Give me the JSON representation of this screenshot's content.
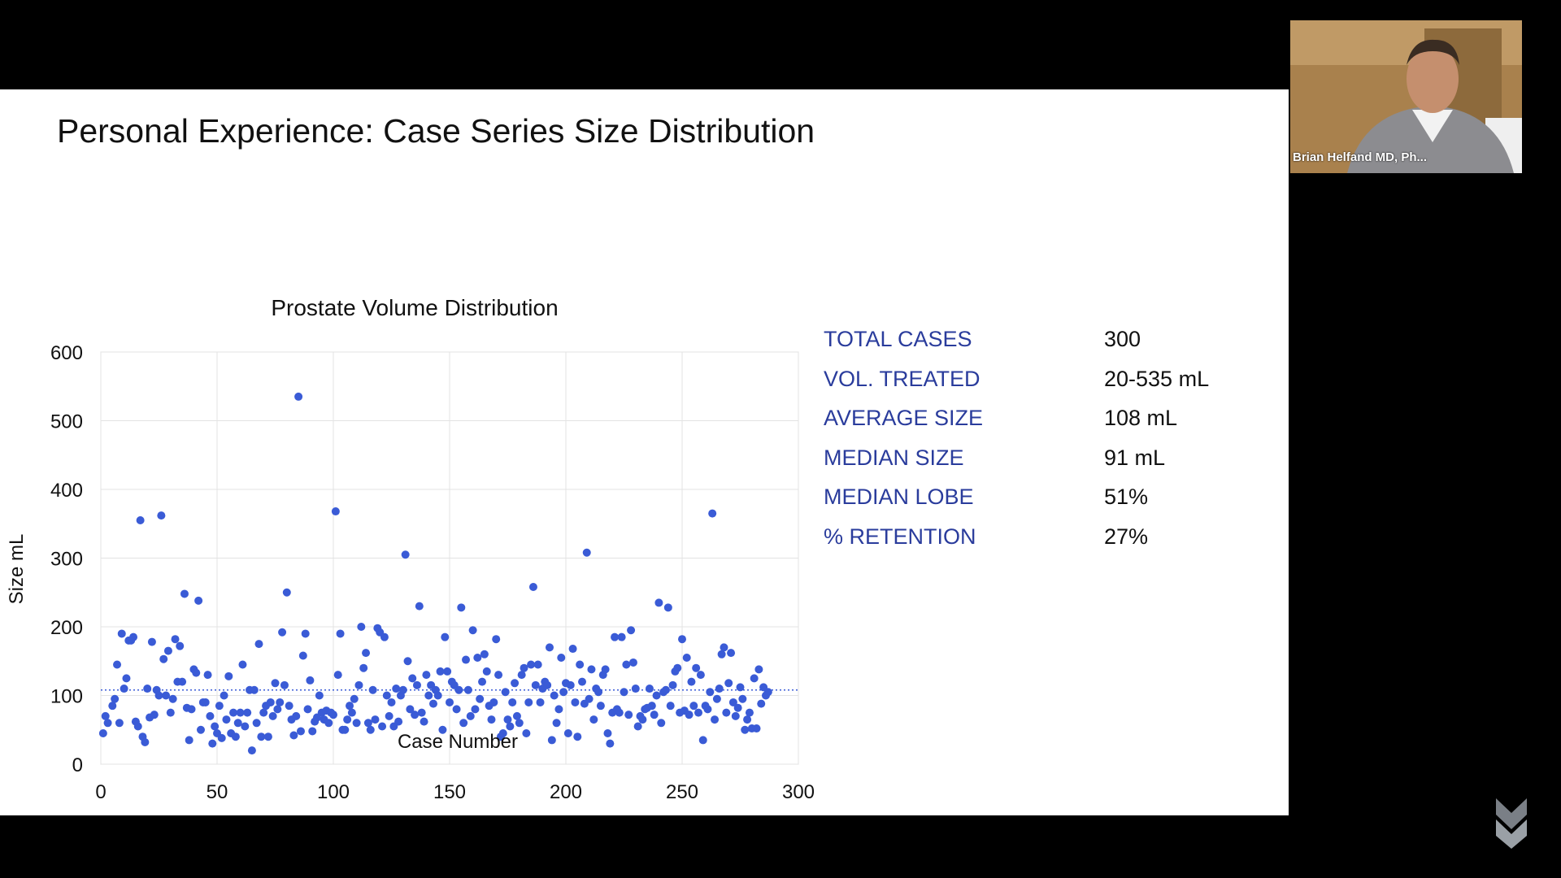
{
  "slide": {
    "title": "Personal Experience: Case Series Size Distribution"
  },
  "stats": [
    {
      "label": "TOTAL CASES",
      "value": "300"
    },
    {
      "label": "VOL. TREATED",
      "value": "20-535 mL"
    },
    {
      "label": "AVERAGE SIZE",
      "value": "108 mL"
    },
    {
      "label": "MEDIAN SIZE",
      "value": "91 mL"
    },
    {
      "label": "MEDIAN LOBE",
      "value": "51%"
    },
    {
      "label": "% RETENTION",
      "value": "27%"
    }
  ],
  "video": {
    "participant_name": "Brian Helfand MD, Ph..."
  },
  "colors": {
    "points": "#3a5bd6",
    "stat_label": "#2a3c9c",
    "background": "#000000",
    "slide": "#ffffff"
  },
  "chart_data": {
    "type": "scatter",
    "title": "Prostate Volume Distribution",
    "xlabel": "Case Number",
    "ylabel": "Size mL",
    "xlim": [
      0,
      300
    ],
    "ylim": [
      0,
      600
    ],
    "xticks": [
      0,
      50,
      100,
      150,
      200,
      250,
      300
    ],
    "yticks": [
      0,
      100,
      200,
      300,
      400,
      500,
      600
    ],
    "grid": true,
    "reference_line": {
      "y": 108,
      "style": "dotted"
    },
    "points": [
      [
        1,
        45
      ],
      [
        2,
        70
      ],
      [
        3,
        60
      ],
      [
        5,
        85
      ],
      [
        6,
        95
      ],
      [
        7,
        145
      ],
      [
        8,
        60
      ],
      [
        9,
        190
      ],
      [
        10,
        110
      ],
      [
        11,
        125
      ],
      [
        12,
        180
      ],
      [
        13,
        180
      ],
      [
        14,
        185
      ],
      [
        15,
        62
      ],
      [
        16,
        55
      ],
      [
        17,
        355
      ],
      [
        18,
        40
      ],
      [
        19,
        32
      ],
      [
        20,
        110
      ],
      [
        21,
        68
      ],
      [
        22,
        178
      ],
      [
        23,
        72
      ],
      [
        24,
        108
      ],
      [
        25,
        100
      ],
      [
        26,
        362
      ],
      [
        27,
        153
      ],
      [
        28,
        100
      ],
      [
        29,
        165
      ],
      [
        30,
        75
      ],
      [
        31,
        95
      ],
      [
        32,
        182
      ],
      [
        33,
        120
      ],
      [
        34,
        172
      ],
      [
        35,
        120
      ],
      [
        36,
        248
      ],
      [
        37,
        82
      ],
      [
        38,
        35
      ],
      [
        39,
        80
      ],
      [
        40,
        138
      ],
      [
        41,
        133
      ],
      [
        42,
        238
      ],
      [
        43,
        50
      ],
      [
        44,
        90
      ],
      [
        45,
        90
      ],
      [
        46,
        130
      ],
      [
        47,
        70
      ],
      [
        48,
        30
      ],
      [
        49,
        55
      ],
      [
        50,
        45
      ],
      [
        51,
        85
      ],
      [
        52,
        38
      ],
      [
        53,
        100
      ],
      [
        54,
        65
      ],
      [
        55,
        128
      ],
      [
        56,
        45
      ],
      [
        57,
        75
      ],
      [
        58,
        40
      ],
      [
        59,
        60
      ],
      [
        60,
        75
      ],
      [
        61,
        145
      ],
      [
        62,
        55
      ],
      [
        63,
        75
      ],
      [
        64,
        108
      ],
      [
        65,
        20
      ],
      [
        66,
        108
      ],
      [
        67,
        60
      ],
      [
        68,
        175
      ],
      [
        69,
        40
      ],
      [
        70,
        75
      ],
      [
        71,
        85
      ],
      [
        72,
        40
      ],
      [
        73,
        90
      ],
      [
        74,
        70
      ],
      [
        75,
        118
      ],
      [
        76,
        80
      ],
      [
        77,
        90
      ],
      [
        78,
        192
      ],
      [
        79,
        115
      ],
      [
        80,
        250
      ],
      [
        81,
        85
      ],
      [
        82,
        65
      ],
      [
        83,
        42
      ],
      [
        84,
        70
      ],
      [
        85,
        535
      ],
      [
        86,
        48
      ],
      [
        87,
        158
      ],
      [
        88,
        190
      ],
      [
        89,
        80
      ],
      [
        90,
        122
      ],
      [
        91,
        48
      ],
      [
        92,
        62
      ],
      [
        93,
        68
      ],
      [
        94,
        100
      ],
      [
        95,
        75
      ],
      [
        96,
        65
      ],
      [
        97,
        78
      ],
      [
        98,
        60
      ],
      [
        99,
        75
      ],
      [
        100,
        72
      ],
      [
        101,
        368
      ],
      [
        102,
        130
      ],
      [
        103,
        190
      ],
      [
        104,
        50
      ],
      [
        105,
        50
      ],
      [
        106,
        65
      ],
      [
        107,
        85
      ],
      [
        108,
        75
      ],
      [
        109,
        95
      ],
      [
        110,
        60
      ],
      [
        111,
        115
      ],
      [
        112,
        200
      ],
      [
        113,
        140
      ],
      [
        114,
        162
      ],
      [
        115,
        60
      ],
      [
        116,
        50
      ],
      [
        117,
        108
      ],
      [
        118,
        65
      ],
      [
        119,
        198
      ],
      [
        120,
        192
      ],
      [
        121,
        55
      ],
      [
        122,
        185
      ],
      [
        123,
        100
      ],
      [
        124,
        70
      ],
      [
        125,
        90
      ],
      [
        126,
        55
      ],
      [
        127,
        110
      ],
      [
        128,
        62
      ],
      [
        129,
        100
      ],
      [
        130,
        108
      ],
      [
        131,
        305
      ],
      [
        132,
        150
      ],
      [
        133,
        80
      ],
      [
        134,
        125
      ],
      [
        135,
        72
      ],
      [
        136,
        115
      ],
      [
        137,
        230
      ],
      [
        138,
        75
      ],
      [
        139,
        62
      ],
      [
        140,
        130
      ],
      [
        141,
        100
      ],
      [
        142,
        115
      ],
      [
        143,
        88
      ],
      [
        144,
        108
      ],
      [
        145,
        100
      ],
      [
        146,
        135
      ],
      [
        147,
        50
      ],
      [
        148,
        185
      ],
      [
        149,
        135
      ],
      [
        150,
        90
      ],
      [
        151,
        120
      ],
      [
        152,
        115
      ],
      [
        153,
        80
      ],
      [
        154,
        108
      ],
      [
        155,
        228
      ],
      [
        156,
        60
      ],
      [
        157,
        152
      ],
      [
        158,
        108
      ],
      [
        159,
        70
      ],
      [
        160,
        195
      ],
      [
        161,
        80
      ],
      [
        162,
        155
      ],
      [
        163,
        95
      ],
      [
        164,
        120
      ],
      [
        165,
        160
      ],
      [
        166,
        135
      ],
      [
        167,
        85
      ],
      [
        168,
        65
      ],
      [
        169,
        90
      ],
      [
        170,
        182
      ],
      [
        171,
        130
      ],
      [
        172,
        40
      ],
      [
        173,
        45
      ],
      [
        174,
        105
      ],
      [
        175,
        65
      ],
      [
        176,
        55
      ],
      [
        177,
        90
      ],
      [
        178,
        118
      ],
      [
        179,
        70
      ],
      [
        180,
        60
      ],
      [
        181,
        130
      ],
      [
        182,
        140
      ],
      [
        183,
        45
      ],
      [
        184,
        90
      ],
      [
        185,
        145
      ],
      [
        186,
        258
      ],
      [
        187,
        115
      ],
      [
        188,
        145
      ],
      [
        189,
        90
      ],
      [
        190,
        110
      ],
      [
        191,
        120
      ],
      [
        192,
        115
      ],
      [
        193,
        170
      ],
      [
        194,
        35
      ],
      [
        195,
        100
      ],
      [
        196,
        60
      ],
      [
        197,
        80
      ],
      [
        198,
        155
      ],
      [
        199,
        105
      ],
      [
        200,
        118
      ],
      [
        201,
        45
      ],
      [
        202,
        115
      ],
      [
        203,
        168
      ],
      [
        204,
        90
      ],
      [
        205,
        40
      ],
      [
        206,
        145
      ],
      [
        207,
        120
      ],
      [
        208,
        88
      ],
      [
        209,
        308
      ],
      [
        210,
        95
      ],
      [
        211,
        138
      ],
      [
        212,
        65
      ],
      [
        213,
        110
      ],
      [
        214,
        105
      ],
      [
        215,
        85
      ],
      [
        216,
        130
      ],
      [
        217,
        138
      ],
      [
        218,
        45
      ],
      [
        219,
        30
      ],
      [
        220,
        75
      ],
      [
        221,
        185
      ],
      [
        222,
        80
      ],
      [
        223,
        75
      ],
      [
        224,
        185
      ],
      [
        225,
        105
      ],
      [
        226,
        145
      ],
      [
        227,
        72
      ],
      [
        228,
        195
      ],
      [
        229,
        148
      ],
      [
        230,
        110
      ],
      [
        231,
        55
      ],
      [
        232,
        70
      ],
      [
        233,
        65
      ],
      [
        234,
        80
      ],
      [
        235,
        82
      ],
      [
        236,
        110
      ],
      [
        237,
        85
      ],
      [
        238,
        72
      ],
      [
        239,
        100
      ],
      [
        240,
        235
      ],
      [
        241,
        60
      ],
      [
        242,
        105
      ],
      [
        243,
        108
      ],
      [
        244,
        228
      ],
      [
        245,
        85
      ],
      [
        246,
        115
      ],
      [
        247,
        135
      ],
      [
        248,
        140
      ],
      [
        249,
        75
      ],
      [
        250,
        182
      ],
      [
        251,
        78
      ],
      [
        252,
        155
      ],
      [
        253,
        72
      ],
      [
        254,
        120
      ],
      [
        255,
        85
      ],
      [
        256,
        140
      ],
      [
        257,
        75
      ],
      [
        258,
        130
      ],
      [
        259,
        35
      ],
      [
        260,
        85
      ],
      [
        261,
        80
      ],
      [
        262,
        105
      ],
      [
        263,
        365
      ],
      [
        264,
        65
      ],
      [
        265,
        95
      ],
      [
        266,
        110
      ],
      [
        267,
        160
      ],
      [
        268,
        170
      ],
      [
        269,
        75
      ],
      [
        270,
        118
      ],
      [
        271,
        162
      ],
      [
        272,
        90
      ],
      [
        273,
        70
      ],
      [
        274,
        82
      ],
      [
        275,
        112
      ],
      [
        276,
        95
      ],
      [
        277,
        50
      ],
      [
        278,
        65
      ],
      [
        279,
        75
      ],
      [
        280,
        52
      ],
      [
        281,
        125
      ],
      [
        282,
        52
      ],
      [
        283,
        138
      ],
      [
        284,
        88
      ],
      [
        285,
        112
      ],
      [
        286,
        100
      ],
      [
        287,
        105
      ]
    ]
  }
}
